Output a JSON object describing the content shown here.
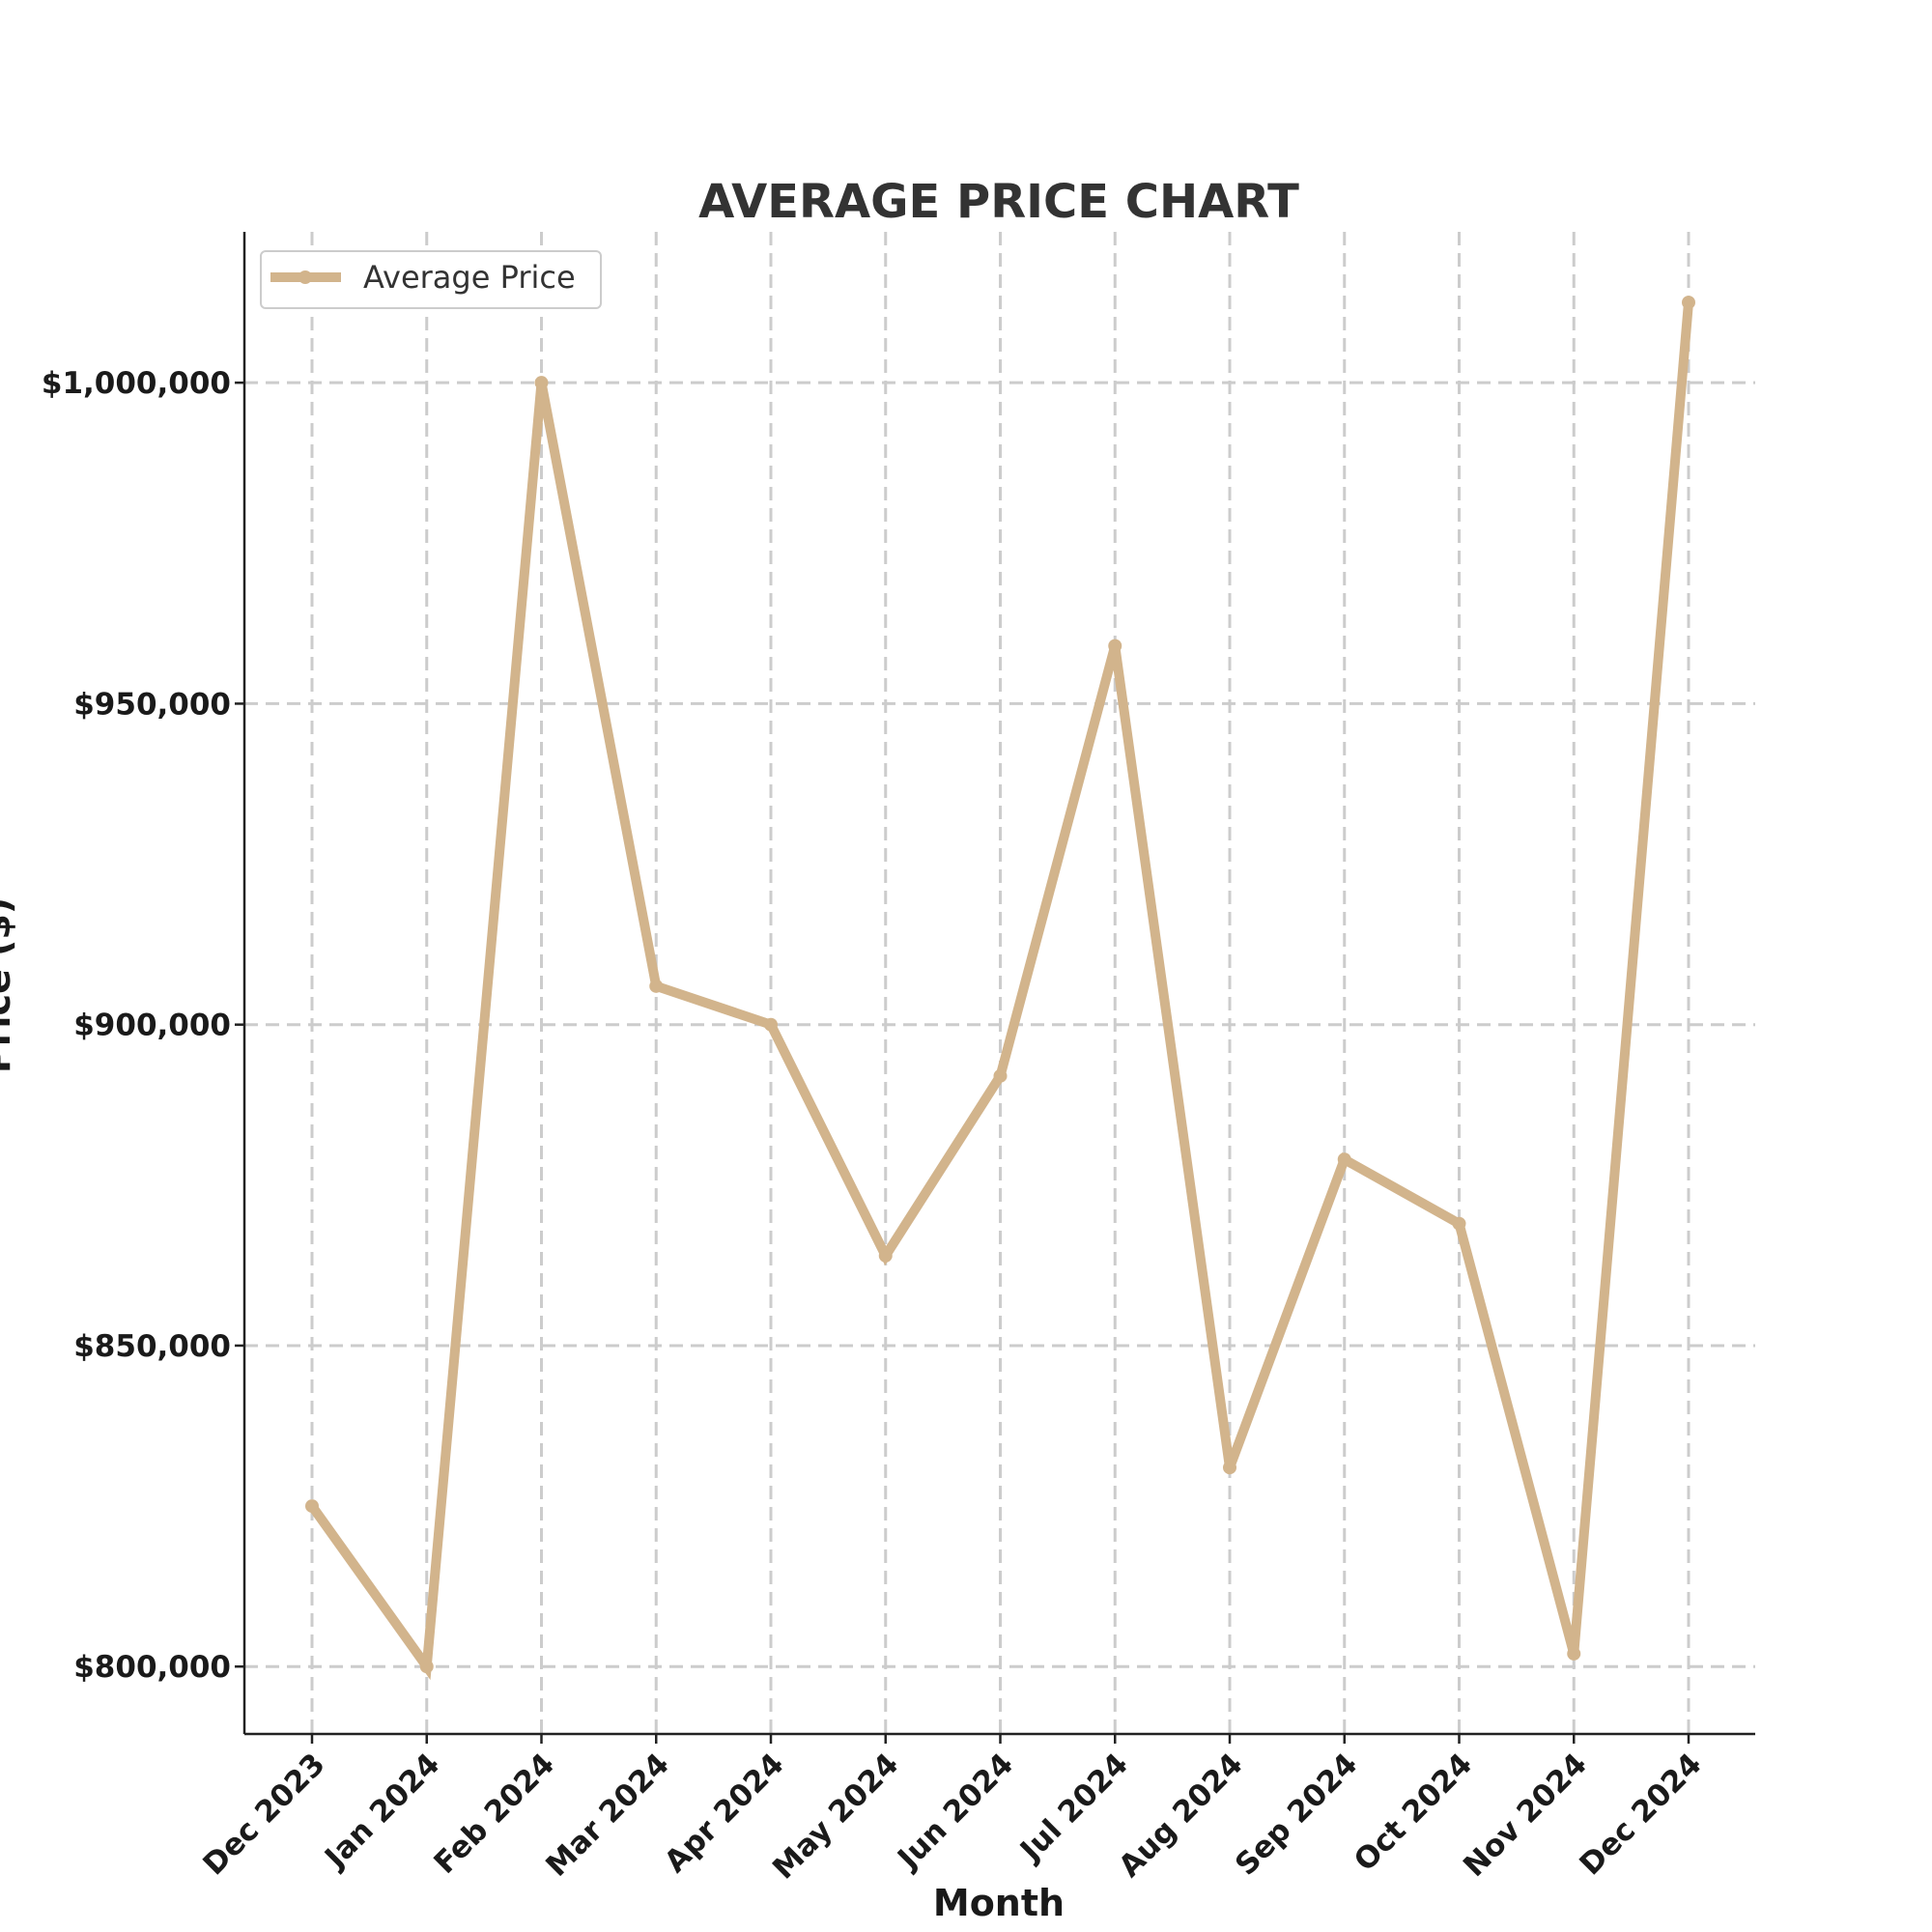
{
  "chart_data": {
    "type": "line",
    "title": "AVERAGE PRICE CHART",
    "xlabel": "Month",
    "ylabel": "Price ($)",
    "categories": [
      "Dec 2023",
      "Jan 2024",
      "Feb 2024",
      "Mar 2024",
      "Apr 2024",
      "May 2024",
      "Jun 2024",
      "Jul 2024",
      "Aug 2024",
      "Sep 2024",
      "Oct 2024",
      "Nov 2024",
      "Dec 2024"
    ],
    "series": [
      {
        "name": "Average Price",
        "color": "#d2b48c",
        "values": [
          825000,
          800000,
          1000000,
          906000,
          900000,
          864000,
          892000,
          959000,
          831000,
          879000,
          869000,
          802000,
          1012500
        ]
      }
    ],
    "ylim": [
      789500,
      1023500
    ],
    "yticks": [
      800000,
      850000,
      900000,
      950000,
      1000000
    ],
    "ytick_labels": [
      "$800,000",
      "$850,000",
      "$900,000",
      "$950,000",
      "$1,000,000"
    ],
    "grid": true,
    "legend": "top-left"
  }
}
